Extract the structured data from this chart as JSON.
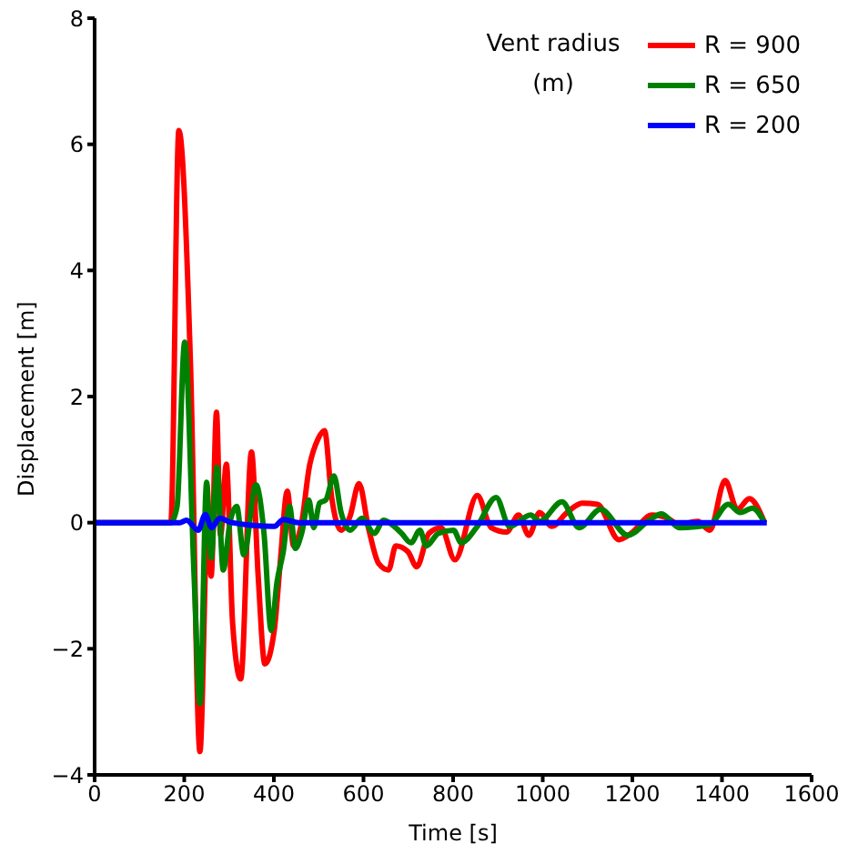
{
  "chart_data": {
    "type": "line",
    "xlabel": "Time [s]",
    "ylabel": "Displacement [m]",
    "legend_title": "Vent radius (m)",
    "legend": "top right",
    "grid": false,
    "marker": "none",
    "line_style": "solid",
    "xlim": [
      0,
      1600
    ],
    "xticks": [
      0,
      200,
      400,
      600,
      800,
      1000,
      1200,
      1400,
      1600
    ],
    "ylim": [
      -4,
      8
    ],
    "yticks": [
      {
        "value": -4,
        "label": "−4"
      },
      {
        "value": -2,
        "label": "−2"
      },
      0,
      2,
      4,
      6,
      8
    ],
    "series": [
      {
        "name": "R = 900",
        "color": "#ff0000",
        "x": [
          0,
          170,
          188,
          214,
          235,
          252,
          260,
          272,
          281,
          294,
          308,
          326,
          350,
          365,
          380,
          401,
          414,
          430,
          444,
          462,
          479,
          498,
          513,
          529,
          550,
          570,
          590,
          611,
          634,
          656,
          672,
          699,
          719,
          746,
          773,
          804,
          854,
          885,
          919,
          946,
          969,
          993,
          1020,
          1054,
          1088,
          1122,
          1170,
          1197,
          1244,
          1278,
          1305,
          1346,
          1373,
          1407,
          1434,
          1461,
          1495
        ],
        "values": [
          0,
          0,
          6.22,
          2.5,
          -3.63,
          0,
          -0.85,
          1.75,
          -0.2,
          0.93,
          -1.6,
          -2.48,
          1.12,
          -0.85,
          -2.24,
          -1.7,
          -0.65,
          0.5,
          -0.37,
          0,
          0.88,
          1.32,
          1.46,
          0.4,
          -0.12,
          0.1,
          0.62,
          -0.08,
          -0.65,
          -0.75,
          -0.37,
          -0.46,
          -0.7,
          -0.17,
          -0.08,
          -0.59,
          0.43,
          -0.08,
          -0.15,
          0.12,
          -0.2,
          0.16,
          -0.06,
          0.16,
          0.31,
          0.29,
          -0.27,
          -0.17,
          0.12,
          0.07,
          -0.03,
          0.02,
          -0.12,
          0.67,
          0.21,
          0.38,
          0
        ]
      },
      {
        "name": "R = 650",
        "color": "#008000",
        "x": [
          0,
          170,
          184,
          201,
          222,
          235,
          250,
          260,
          273,
          287,
          302,
          317,
          333,
          360,
          378,
          394,
          407,
          421,
          435,
          448,
          462,
          478,
          489,
          502,
          516,
          534,
          550,
          570,
          597,
          624,
          645,
          672,
          685,
          706,
          726,
          740,
          767,
          801,
          818,
          852,
          896,
          926,
          973,
          993,
          1043,
          1081,
          1129,
          1190,
          1238,
          1265,
          1305,
          1373,
          1414,
          1441,
          1468,
          1495
        ],
        "values": [
          0,
          0,
          0.26,
          2.86,
          -0.85,
          -2.87,
          0.64,
          -0.56,
          0.88,
          -0.75,
          0,
          0.26,
          -0.51,
          0.6,
          -0.17,
          -1.71,
          -0.94,
          -0.46,
          0.26,
          -0.41,
          -0.17,
          0.36,
          -0.08,
          0.31,
          0.36,
          0.74,
          0.16,
          -0.12,
          0.07,
          -0.17,
          0.04,
          -0.08,
          -0.17,
          -0.32,
          -0.12,
          -0.37,
          -0.17,
          -0.12,
          -0.32,
          -0.08,
          0.4,
          -0.06,
          0.12,
          0.02,
          0.33,
          -0.08,
          0.21,
          -0.2,
          0.04,
          0.14,
          -0.08,
          -0.03,
          0.29,
          0.16,
          0.23,
          0
        ]
      },
      {
        "name": "R = 200",
        "color": "#0000ff",
        "x": [
          0,
          190,
          205,
          231,
          247,
          261,
          279,
          306,
          401,
          421,
          455,
          1500
        ],
        "values": [
          0,
          0,
          0.04,
          -0.12,
          0.13,
          -0.08,
          0.07,
          0,
          -0.06,
          0.05,
          0,
          0
        ]
      }
    ]
  }
}
